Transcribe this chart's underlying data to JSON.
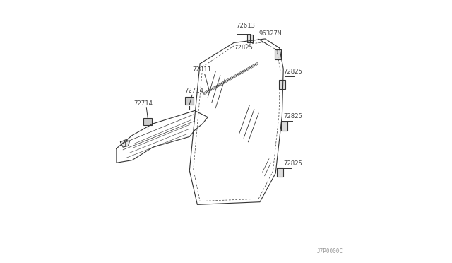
{
  "bg_color": "#ffffff",
  "line_color": "#333333",
  "label_color": "#444444",
  "watermark": "J7P0000C",
  "figsize": [
    6.4,
    3.72
  ],
  "dpi": 100
}
